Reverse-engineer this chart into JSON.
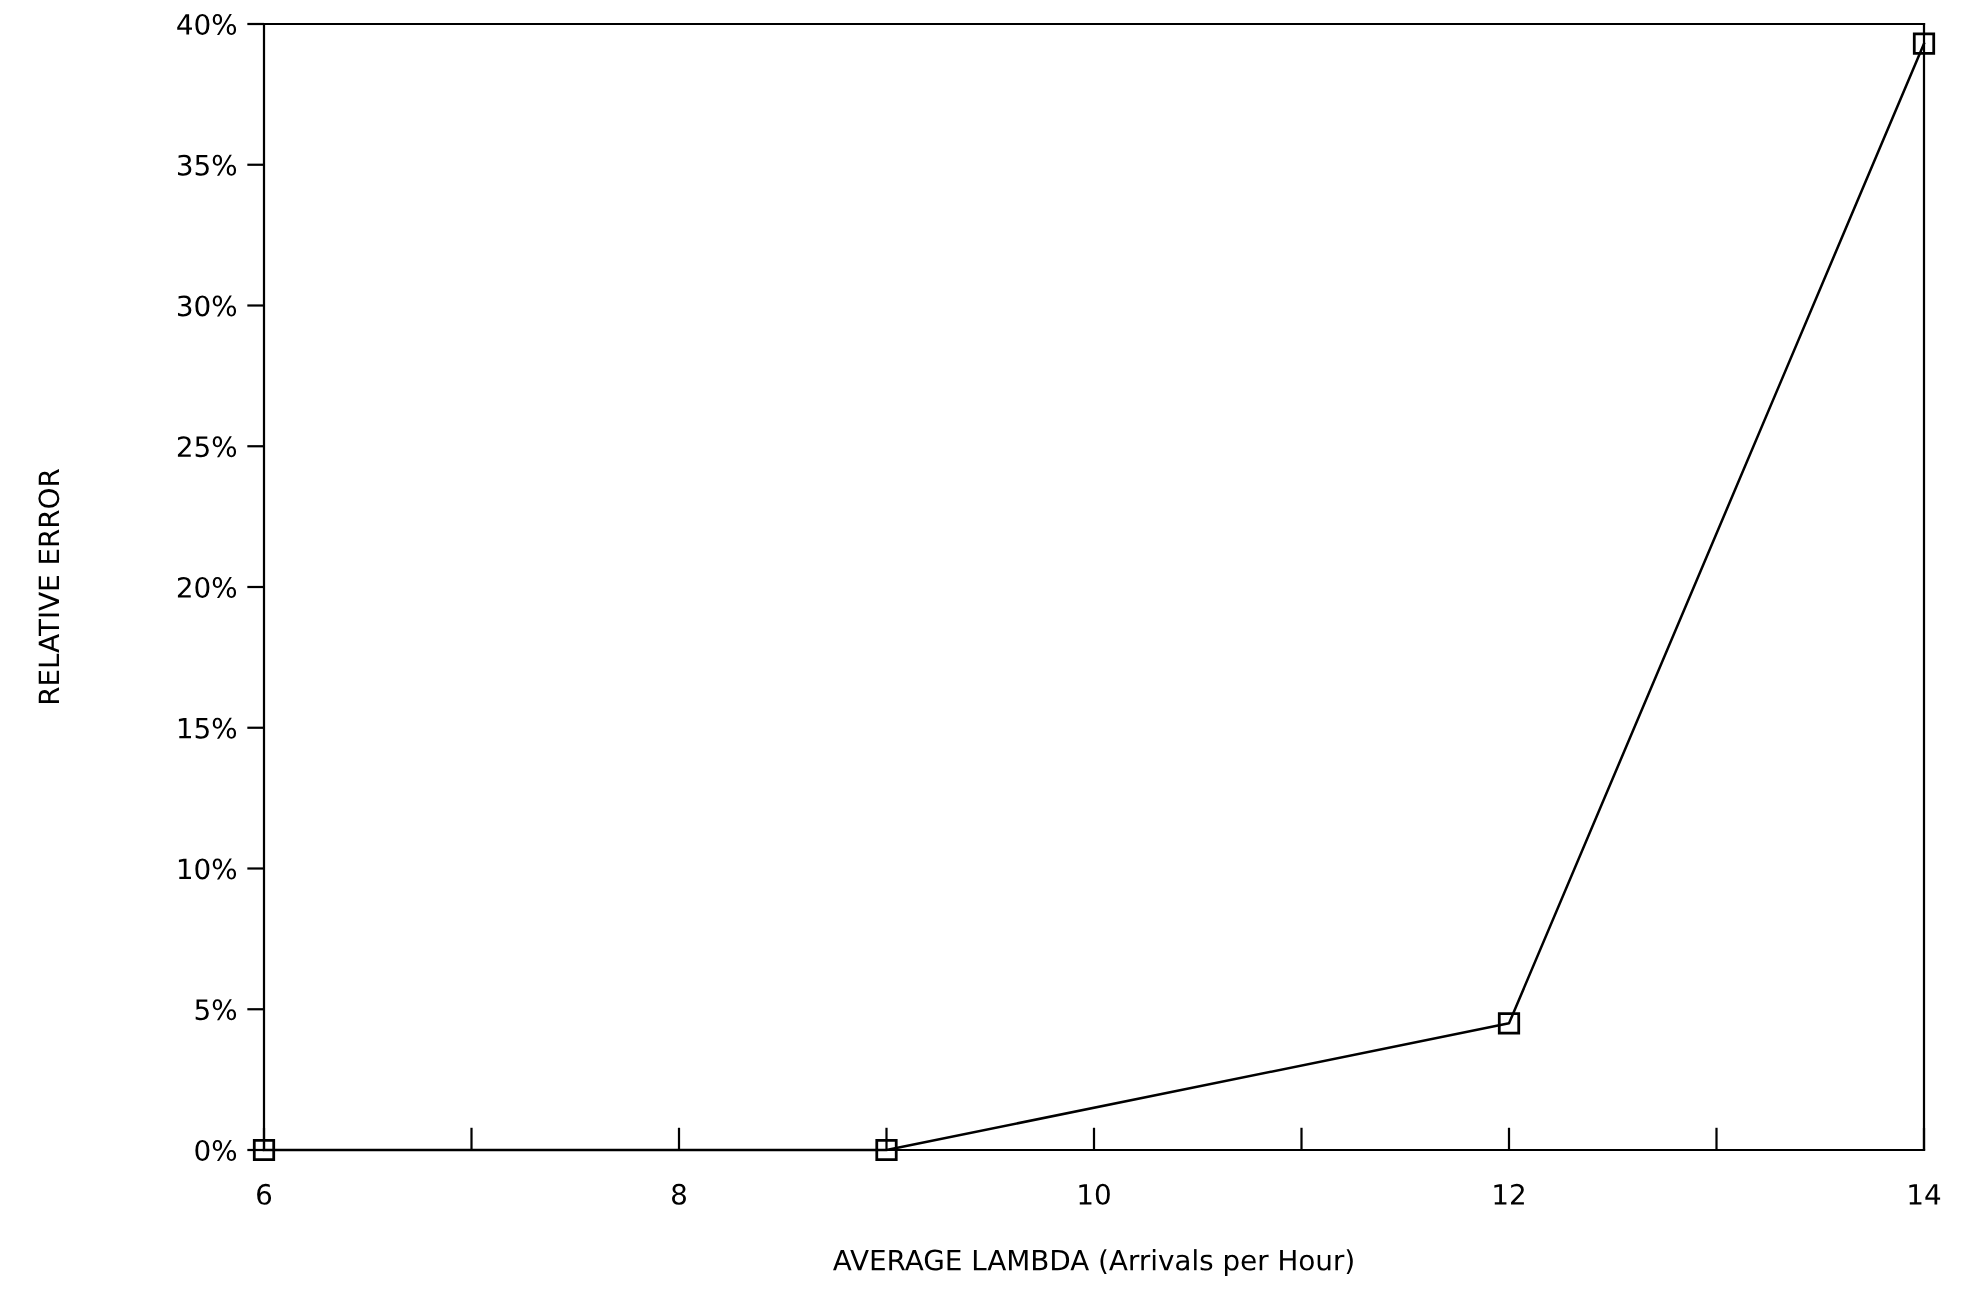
{
  "chart_data": {
    "type": "line",
    "xlabel": "AVERAGE LAMBDA (Arrivals per Hour)",
    "ylabel": "RELATIVE ERROR",
    "x": [
      6,
      9,
      12,
      14
    ],
    "series": [
      {
        "color": "#000000",
        "values": [
          0,
          0,
          4.5,
          39.3
        ]
      }
    ],
    "marker": "square",
    "line_style": "solid",
    "grid": false,
    "legend": false,
    "xlim": [
      6,
      14
    ],
    "xticks": [
      6,
      {
        "value": 7,
        "label": null
      },
      8,
      {
        "value": 9,
        "label": null
      },
      10,
      {
        "value": 11,
        "label": null
      },
      12,
      {
        "value": 13,
        "label": null
      },
      14
    ],
    "ylim": [
      0,
      40
    ],
    "yticks": [
      {
        "value": 0,
        "label": "0%"
      },
      {
        "value": 5,
        "label": "5%"
      },
      {
        "value": 10,
        "label": "10%"
      },
      {
        "value": 15,
        "label": "15%"
      },
      {
        "value": 20,
        "label": "20%"
      },
      {
        "value": 25,
        "label": "25%"
      },
      {
        "value": 30,
        "label": "30%"
      },
      {
        "value": 35,
        "label": "35%"
      },
      {
        "value": 40,
        "label": "40%"
      }
    ]
  }
}
